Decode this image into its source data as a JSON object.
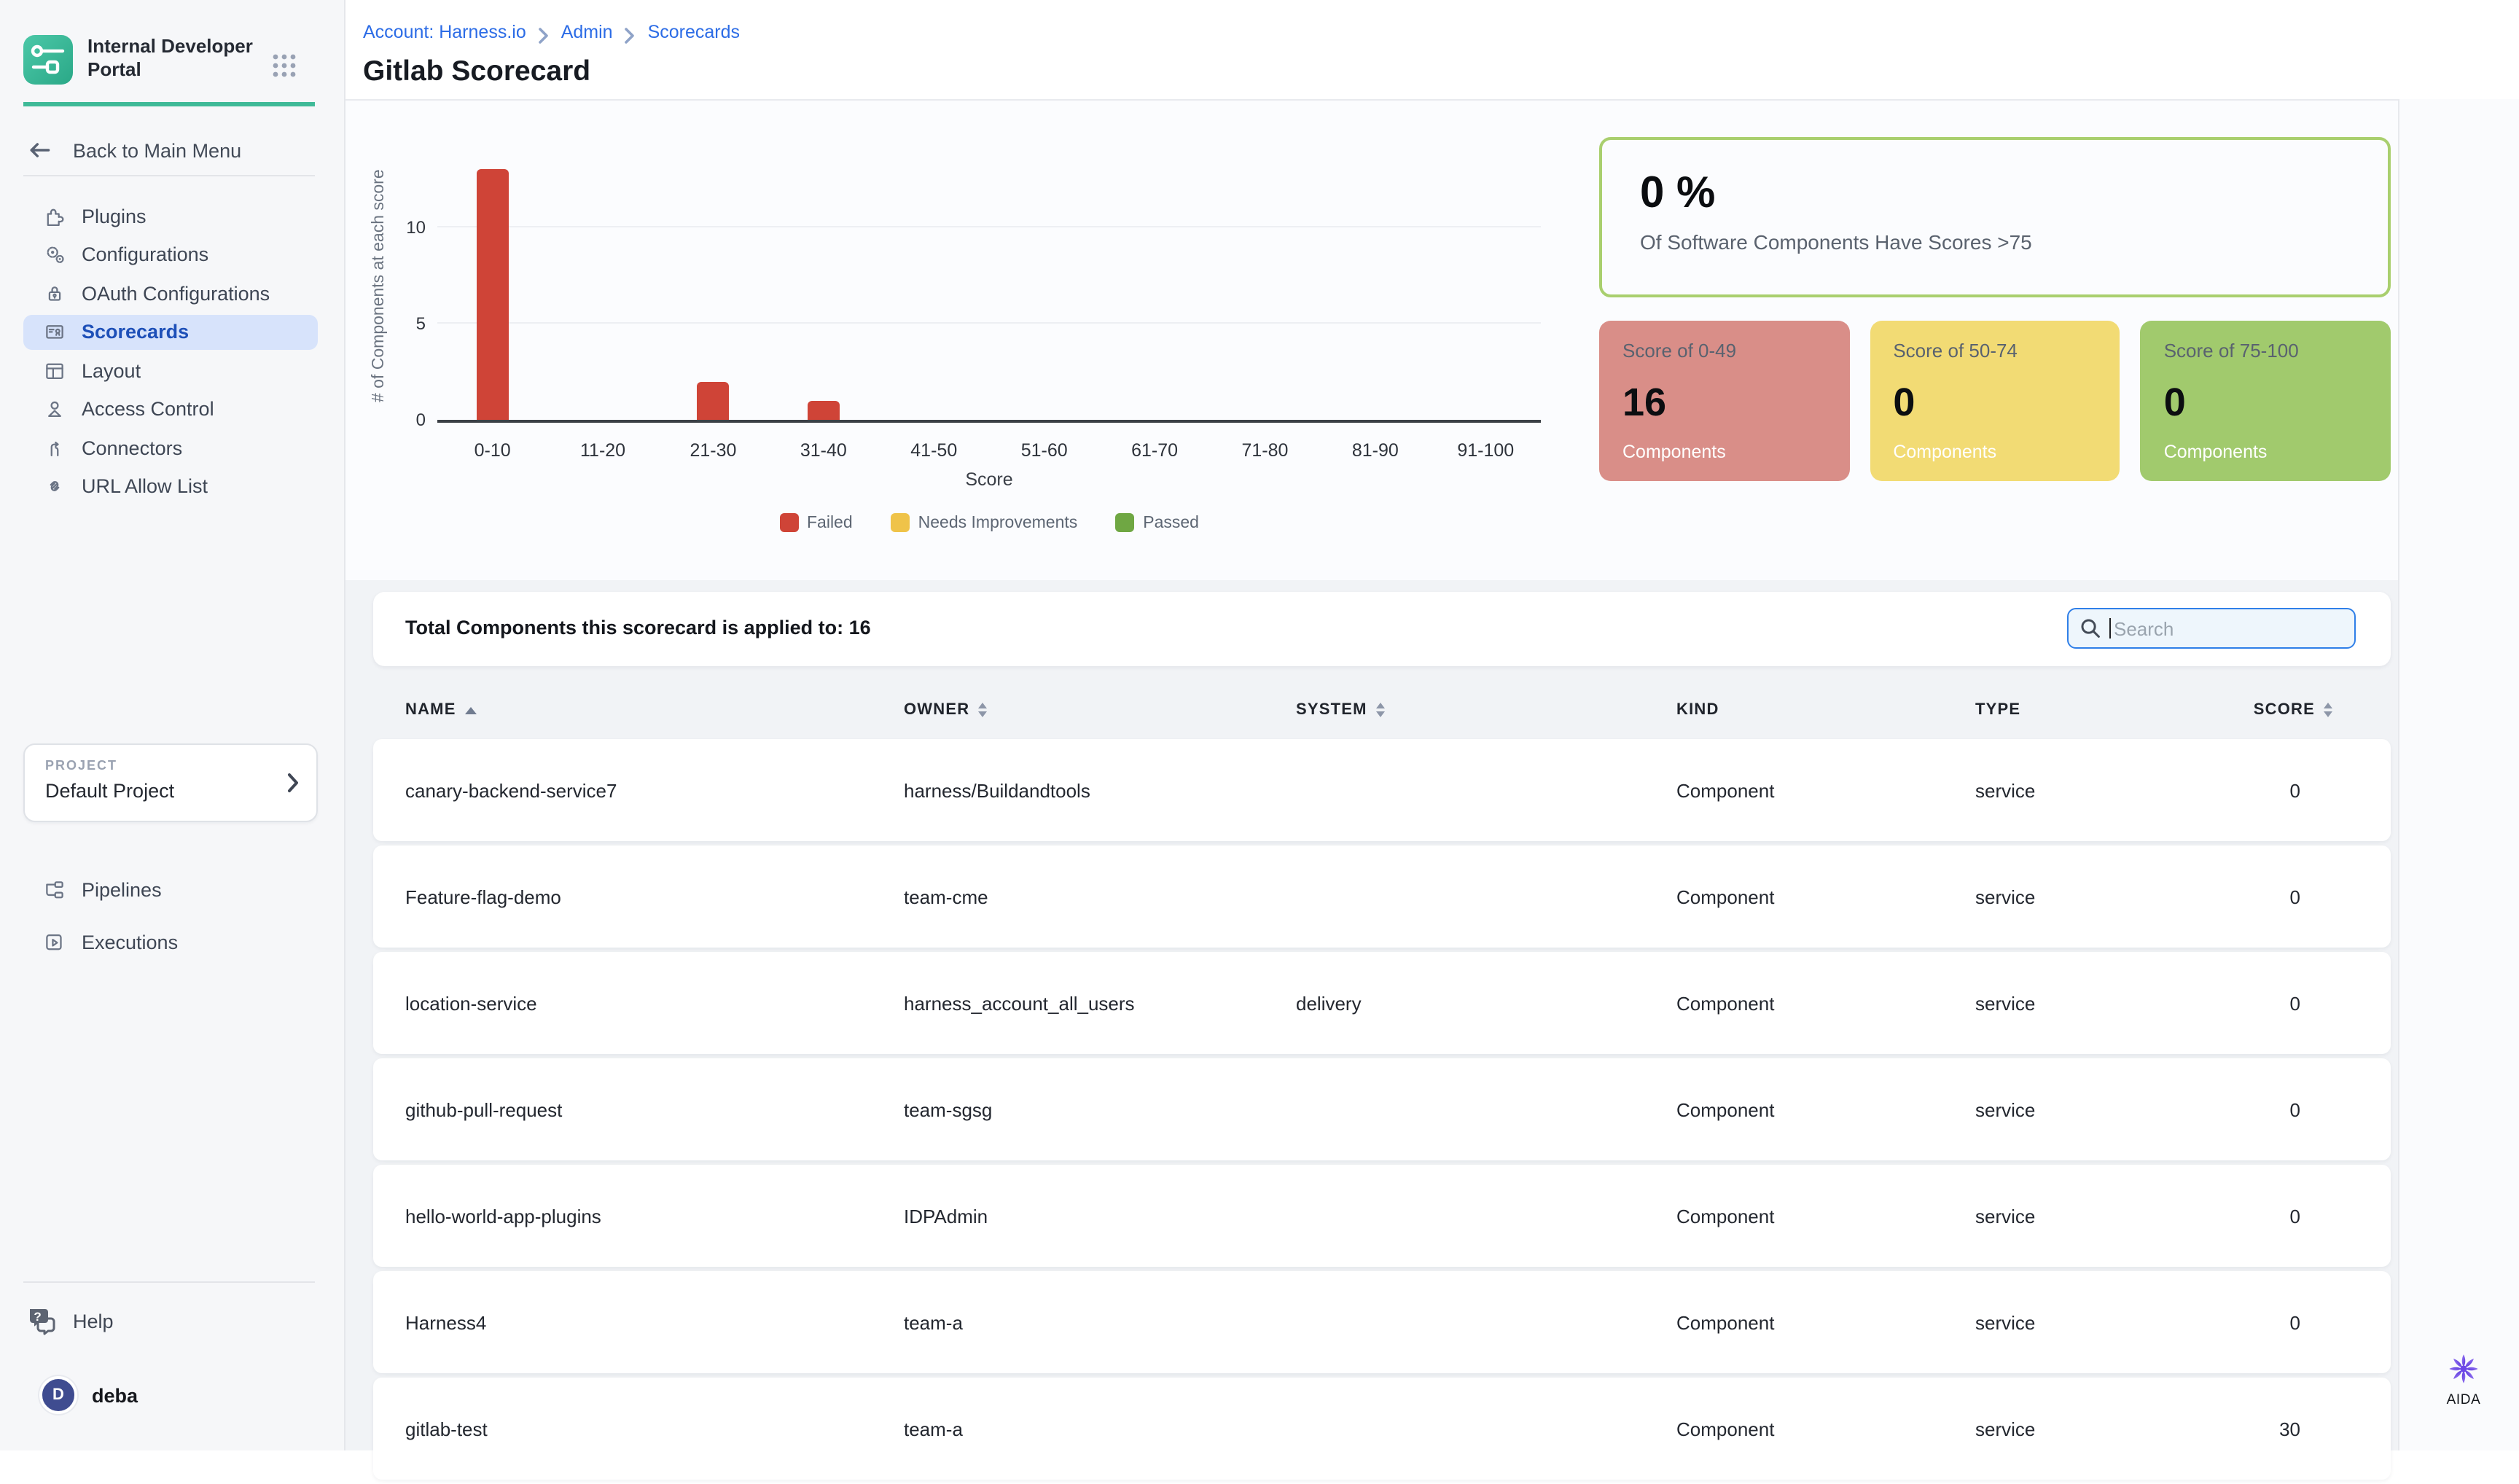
{
  "sidebar": {
    "brand_title": "Internal Developer Portal",
    "back_label": "Back to Main Menu",
    "items": [
      {
        "id": "plugins",
        "label": "Plugins",
        "icon": "puzzle",
        "active": false
      },
      {
        "id": "configurations",
        "label": "Configurations",
        "icon": "gears",
        "active": false
      },
      {
        "id": "oauth-configurations",
        "label": "OAuth Configurations",
        "icon": "lock",
        "active": false
      },
      {
        "id": "scorecards",
        "label": "Scorecards",
        "icon": "scorecard",
        "active": true
      },
      {
        "id": "layout",
        "label": "Layout",
        "icon": "layout",
        "active": false
      },
      {
        "id": "access-control",
        "label": "Access Control",
        "icon": "person",
        "active": false
      },
      {
        "id": "connectors",
        "label": "Connectors",
        "icon": "branch",
        "active": false
      },
      {
        "id": "url-allow-list",
        "label": "URL Allow List",
        "icon": "link",
        "active": false
      }
    ],
    "project_label": "PROJECT",
    "project_name": "Default Project",
    "project_items": [
      {
        "id": "pipelines",
        "label": "Pipelines",
        "icon": "pipelines"
      },
      {
        "id": "executions",
        "label": "Executions",
        "icon": "executions"
      }
    ],
    "help_label": "Help",
    "user_initial": "D",
    "user_name": "deba"
  },
  "header": {
    "breadcrumbs": [
      "Account: Harness.io",
      "Admin",
      "Scorecards"
    ],
    "title": "Gitlab Scorecard"
  },
  "chart_data": {
    "type": "bar",
    "categories": [
      "0-10",
      "11-20",
      "21-30",
      "31-40",
      "41-50",
      "51-60",
      "61-70",
      "71-80",
      "81-90",
      "91-100"
    ],
    "values": [
      13,
      0,
      2,
      1,
      0,
      0,
      0,
      0,
      0,
      0
    ],
    "title": "",
    "xlabel": "Score",
    "ylabel": "# of Components at each score",
    "yticks": [
      0,
      5,
      10
    ],
    "ylim": [
      0,
      13.5
    ],
    "bar_color": "#cf4437",
    "grid": "horizontal",
    "legend_position": "bottom",
    "legend": [
      {
        "label": "Failed",
        "color": "#cf4437"
      },
      {
        "label": "Needs Improvements",
        "color": "#efc349"
      },
      {
        "label": "Passed",
        "color": "#6fa743"
      }
    ]
  },
  "summary": {
    "percent": "0 %",
    "caption": "Of Software Components Have Scores >75",
    "border_color": "#a9cf6e",
    "cards": [
      {
        "title": "Score of 0-49",
        "value": "16",
        "caption": "Components",
        "color": "#d98e88"
      },
      {
        "title": "Score of 50-74",
        "value": "0",
        "caption": "Components",
        "color": "#f2db74"
      },
      {
        "title": "Score of 75-100",
        "value": "0",
        "caption": "Components",
        "color": "#a1ca6d"
      }
    ]
  },
  "table": {
    "total_label": "Total Components this scorecard is applied to: 16",
    "search_placeholder": "Search",
    "columns": [
      {
        "label": "NAME",
        "sort": "asc"
      },
      {
        "label": "OWNER",
        "sort": "both"
      },
      {
        "label": "SYSTEM",
        "sort": "both"
      },
      {
        "label": "KIND",
        "sort": "none"
      },
      {
        "label": "TYPE",
        "sort": "none"
      },
      {
        "label": "SCORE",
        "sort": "both"
      }
    ],
    "rows": [
      {
        "name": "canary-backend-service7",
        "owner": "harness/Buildandtools",
        "system": "",
        "kind": "Component",
        "type": "service",
        "score": "0"
      },
      {
        "name": "Feature-flag-demo",
        "owner": "team-cme",
        "system": "",
        "kind": "Component",
        "type": "service",
        "score": "0"
      },
      {
        "name": "location-service",
        "owner": "harness_account_all_users",
        "system": "delivery",
        "kind": "Component",
        "type": "service",
        "score": "0"
      },
      {
        "name": "github-pull-request",
        "owner": "team-sgsg",
        "system": "",
        "kind": "Component",
        "type": "service",
        "score": "0"
      },
      {
        "name": "hello-world-app-plugins",
        "owner": "IDPAdmin",
        "system": "",
        "kind": "Component",
        "type": "service",
        "score": "0"
      },
      {
        "name": "Harness4",
        "owner": "team-a",
        "system": "",
        "kind": "Component",
        "type": "service",
        "score": "0"
      },
      {
        "name": "gitlab-test",
        "owner": "team-a",
        "system": "",
        "kind": "Component",
        "type": "service",
        "score": "30"
      }
    ]
  },
  "aida_label": "AIDA"
}
